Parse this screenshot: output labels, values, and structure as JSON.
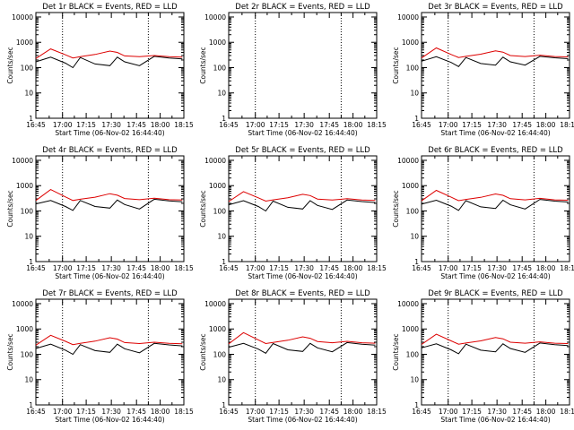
{
  "colors": {
    "background": "#ffffff",
    "events": "#000000",
    "lld": "#dd0000",
    "axes": "#000000"
  },
  "shared": {
    "xlabel": "Start Time (06-Nov-02 16:44:40)",
    "ylabel": "Counts/sec",
    "x_tick_labels": [
      "16:45",
      "17:00",
      "17:15",
      "17:30",
      "17:45",
      "18:00",
      "18:15"
    ],
    "y_tick_labels": [
      "1",
      "10",
      "100",
      "1000",
      "10000"
    ]
  },
  "chart_data": [
    {
      "type": "line",
      "title": "Det 1r BLACK = Events, RED = LLD",
      "x": [
        0,
        10,
        20,
        25,
        30,
        40,
        50,
        55,
        60,
        70,
        80,
        90,
        99
      ],
      "xlim": [
        0,
        100
      ],
      "ylim": [
        1,
        15000
      ],
      "yscale": "log",
      "dotted_x": [
        18,
        76
      ],
      "grid": false,
      "series": [
        {
          "name": "Events",
          "values": [
            170,
            260,
            150,
            100,
            250,
            140,
            120,
            260,
            170,
            120,
            280,
            240,
            220
          ]
        },
        {
          "name": "LLD",
          "values": [
            230,
            550,
            320,
            240,
            270,
            330,
            450,
            400,
            290,
            270,
            300,
            270,
            260
          ]
        }
      ]
    },
    {
      "type": "line",
      "title": "Det 2r BLACK = Events, RED = LLD",
      "xlim": [
        0,
        100
      ],
      "ylim": [
        1,
        15000
      ],
      "yscale": "log",
      "dotted_x": [
        18,
        76
      ],
      "grid": false,
      "series": []
    },
    {
      "type": "line",
      "title": "Det 3r BLACK = Events, RED = LLD",
      "x": [
        0,
        10,
        20,
        25,
        30,
        40,
        50,
        55,
        60,
        70,
        80,
        90,
        99
      ],
      "xlim": [
        0,
        100
      ],
      "ylim": [
        1,
        15000
      ],
      "yscale": "log",
      "dotted_x": [
        18,
        76
      ],
      "grid": false,
      "series": [
        {
          "name": "Events",
          "values": [
            180,
            270,
            160,
            110,
            250,
            145,
            125,
            260,
            170,
            125,
            280,
            245,
            225
          ]
        },
        {
          "name": "LLD",
          "values": [
            240,
            600,
            330,
            250,
            280,
            340,
            460,
            410,
            300,
            275,
            310,
            275,
            265
          ]
        }
      ]
    },
    {
      "type": "line",
      "title": "Det 4r BLACK = Events, RED = LLD",
      "x": [
        0,
        10,
        20,
        25,
        30,
        40,
        50,
        55,
        60,
        70,
        80,
        90,
        99
      ],
      "xlim": [
        0,
        100
      ],
      "ylim": [
        1,
        15000
      ],
      "yscale": "log",
      "dotted_x": [
        18,
        76
      ],
      "grid": false,
      "series": [
        {
          "name": "Events",
          "values": [
            190,
            260,
            150,
            105,
            260,
            150,
            130,
            270,
            180,
            120,
            290,
            250,
            230
          ]
        },
        {
          "name": "LLD",
          "values": [
            260,
            700,
            360,
            260,
            290,
            350,
            480,
            420,
            310,
            280,
            320,
            280,
            270
          ]
        }
      ]
    },
    {
      "type": "line",
      "title": "Det 5r BLACK = Events, RED = LLD",
      "x": [
        0,
        10,
        20,
        25,
        30,
        40,
        50,
        55,
        60,
        70,
        80,
        90,
        99
      ],
      "xlim": [
        0,
        100
      ],
      "ylim": [
        1,
        15000
      ],
      "yscale": "log",
      "dotted_x": [
        18,
        76
      ],
      "grid": false,
      "series": [
        {
          "name": "Events",
          "values": [
            175,
            255,
            150,
            100,
            245,
            140,
            120,
            255,
            165,
            115,
            270,
            235,
            215
          ]
        },
        {
          "name": "LLD",
          "values": [
            235,
            580,
            330,
            245,
            275,
            335,
            455,
            405,
            295,
            270,
            305,
            270,
            260
          ]
        }
      ]
    },
    {
      "type": "line",
      "title": "Det 6r BLACK = Events, RED = LLD",
      "x": [
        0,
        10,
        20,
        25,
        30,
        40,
        50,
        55,
        60,
        70,
        80,
        90,
        99
      ],
      "xlim": [
        0,
        100
      ],
      "ylim": [
        1,
        15000
      ],
      "yscale": "log",
      "dotted_x": [
        18,
        76
      ],
      "grid": false,
      "series": [
        {
          "name": "Events",
          "values": [
            185,
            265,
            155,
            105,
            255,
            145,
            125,
            265,
            175,
            120,
            285,
            245,
            225
          ]
        },
        {
          "name": "LLD",
          "values": [
            250,
            650,
            350,
            255,
            285,
            345,
            470,
            415,
            305,
            275,
            315,
            275,
            265
          ]
        }
      ]
    },
    {
      "type": "line",
      "title": "Det 7r BLACK = Events, RED = LLD",
      "x": [
        0,
        10,
        20,
        25,
        30,
        40,
        50,
        55,
        60,
        70,
        80,
        90,
        99
      ],
      "xlim": [
        0,
        100
      ],
      "ylim": [
        1,
        15000
      ],
      "yscale": "log",
      "dotted_x": [
        18,
        76
      ],
      "grid": false,
      "series": [
        {
          "name": "Events",
          "values": [
            170,
            250,
            145,
            100,
            240,
            140,
            120,
            250,
            165,
            115,
            270,
            235,
            215
          ]
        },
        {
          "name": "LLD",
          "values": [
            230,
            560,
            325,
            240,
            270,
            330,
            450,
            400,
            290,
            265,
            300,
            270,
            260
          ]
        }
      ]
    },
    {
      "type": "line",
      "title": "Det 8r BLACK = Events, RED = LLD",
      "x": [
        0,
        10,
        20,
        25,
        30,
        40,
        50,
        55,
        60,
        70,
        80,
        90,
        99
      ],
      "xlim": [
        0,
        100
      ],
      "ylim": [
        1,
        15000
      ],
      "yscale": "log",
      "dotted_x": [
        18,
        76
      ],
      "grid": false,
      "series": [
        {
          "name": "Events",
          "values": [
            190,
            270,
            160,
            110,
            265,
            150,
            130,
            270,
            180,
            125,
            290,
            250,
            230
          ]
        },
        {
          "name": "LLD",
          "values": [
            260,
            720,
            370,
            265,
            295,
            360,
            490,
            430,
            320,
            285,
            325,
            285,
            275
          ]
        }
      ]
    },
    {
      "type": "line",
      "title": "Det 9r BLACK = Events, RED = LLD",
      "x": [
        0,
        10,
        20,
        25,
        30,
        40,
        50,
        55,
        60,
        70,
        80,
        90,
        99
      ],
      "xlim": [
        0,
        100
      ],
      "ylim": [
        1,
        15000
      ],
      "yscale": "log",
      "dotted_x": [
        18,
        76
      ],
      "grid": false,
      "series": [
        {
          "name": "Events",
          "values": [
            180,
            260,
            150,
            105,
            250,
            145,
            125,
            260,
            170,
            120,
            280,
            240,
            220
          ]
        },
        {
          "name": "LLD",
          "values": [
            245,
            620,
            340,
            250,
            280,
            340,
            460,
            410,
            300,
            275,
            310,
            275,
            265
          ]
        }
      ]
    }
  ]
}
